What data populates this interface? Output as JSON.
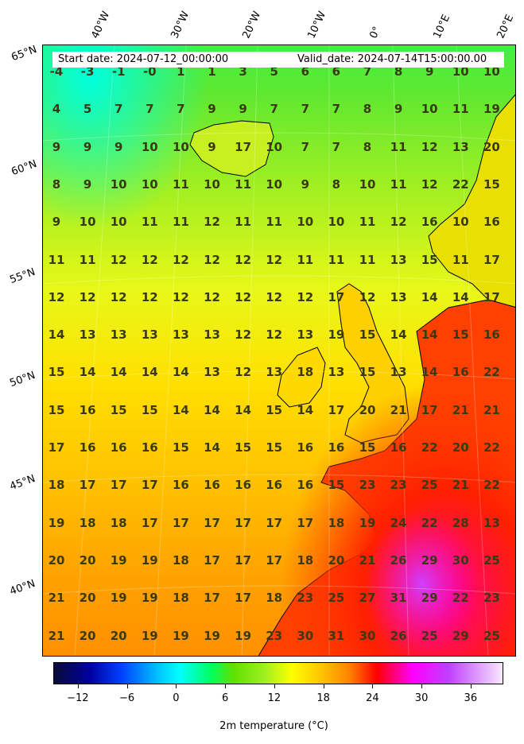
{
  "header": {
    "start_date": "Start date: 2024-07-12_00:00:00",
    "valid_date": "Valid_date: 2024-07-14T15:00:00.00"
  },
  "lon_labels": [
    "40°W",
    "30°W",
    "20°W",
    "10°W",
    "0°",
    "10°E",
    "20°E"
  ],
  "lat_labels": [
    "65°N",
    "60°N",
    "55°N",
    "50°N",
    "45°N",
    "40°N"
  ],
  "colorbar": {
    "title": "2m temperature ($^\\circ$C)",
    "title_display": "2m temperature (°C)",
    "ticks": [
      "−12",
      "−6",
      "0",
      "6",
      "12",
      "18",
      "24",
      "30",
      "36"
    ],
    "range": [
      -15,
      40
    ],
    "colors": [
      "#0a0a3a",
      "#0000a0",
      "#0040ff",
      "#00c0ff",
      "#00ffff",
      "#00ff60",
      "#60e000",
      "#a0f020",
      "#ffff00",
      "#ffc000",
      "#ff8000",
      "#ff0000",
      "#ff00ff",
      "#c040ff",
      "#f0c0ff"
    ]
  },
  "temperature_grid": [
    [
      "-4",
      "-3",
      "-1",
      "-0",
      "1",
      "1",
      "3",
      "5",
      "6",
      "6",
      "7",
      "8",
      "9",
      "10",
      "10"
    ],
    [
      "4",
      "5",
      "7",
      "7",
      "7",
      "9",
      "9",
      "7",
      "7",
      "7",
      "8",
      "9",
      "10",
      "11",
      "19"
    ],
    [
      "9",
      "9",
      "9",
      "10",
      "10",
      "9",
      "17",
      "10",
      "7",
      "7",
      "8",
      "11",
      "12",
      "13",
      "20"
    ],
    [
      "8",
      "9",
      "10",
      "10",
      "11",
      "10",
      "11",
      "10",
      "9",
      "8",
      "10",
      "11",
      "12",
      "22",
      "15"
    ],
    [
      "9",
      "10",
      "10",
      "11",
      "11",
      "12",
      "11",
      "11",
      "10",
      "10",
      "11",
      "12",
      "16",
      "10",
      "16"
    ],
    [
      "11",
      "11",
      "12",
      "12",
      "12",
      "12",
      "12",
      "12",
      "11",
      "11",
      "11",
      "13",
      "15",
      "11",
      "17"
    ],
    [
      "12",
      "12",
      "12",
      "12",
      "12",
      "12",
      "12",
      "12",
      "12",
      "17",
      "12",
      "13",
      "14",
      "14",
      "17"
    ],
    [
      "14",
      "13",
      "13",
      "13",
      "13",
      "13",
      "12",
      "12",
      "13",
      "19",
      "15",
      "14",
      "14",
      "15",
      "16"
    ],
    [
      "15",
      "14",
      "14",
      "14",
      "14",
      "13",
      "12",
      "13",
      "18",
      "13",
      "15",
      "13",
      "14",
      "16",
      "22"
    ],
    [
      "15",
      "16",
      "15",
      "15",
      "14",
      "14",
      "14",
      "15",
      "14",
      "17",
      "20",
      "21",
      "17",
      "21",
      "21"
    ],
    [
      "17",
      "16",
      "16",
      "16",
      "15",
      "14",
      "15",
      "15",
      "16",
      "16",
      "15",
      "16",
      "22",
      "20",
      "22"
    ],
    [
      "18",
      "17",
      "17",
      "17",
      "16",
      "16",
      "16",
      "16",
      "16",
      "15",
      "23",
      "23",
      "25",
      "21",
      "22"
    ],
    [
      "19",
      "18",
      "18",
      "17",
      "17",
      "17",
      "17",
      "17",
      "17",
      "18",
      "19",
      "24",
      "22",
      "28",
      "13"
    ],
    [
      "20",
      "20",
      "19",
      "19",
      "18",
      "17",
      "17",
      "17",
      "18",
      "20",
      "21",
      "26",
      "29",
      "30",
      "25"
    ],
    [
      "21",
      "20",
      "19",
      "19",
      "18",
      "17",
      "17",
      "18",
      "23",
      "25",
      "27",
      "31",
      "29",
      "22",
      "23"
    ],
    [
      "21",
      "20",
      "20",
      "19",
      "19",
      "19",
      "19",
      "23",
      "30",
      "31",
      "30",
      "26",
      "25",
      "29",
      "25"
    ]
  ]
}
